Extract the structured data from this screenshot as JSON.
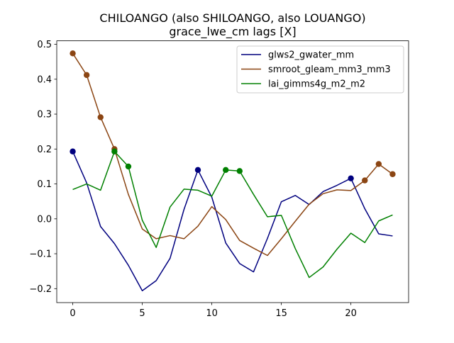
{
  "chart_data": {
    "type": "line",
    "title": "CHILOANGO (also SHILOANGO, also LOUANGO)",
    "subtitle": "grace_lwe_cm lags [X]",
    "xlabel": "",
    "ylabel": "",
    "xlim": [
      -1.15,
      24.15
    ],
    "ylim": [
      -0.24,
      0.51
    ],
    "xticks": [
      0,
      5,
      10,
      15,
      20
    ],
    "yticks": [
      -0.2,
      -0.1,
      0.0,
      0.1,
      0.2,
      0.3,
      0.4,
      0.5
    ],
    "ytick_labels": [
      "−0.2",
      "−0.1",
      "0.0",
      "0.1",
      "0.2",
      "0.3",
      "0.4",
      "0.5"
    ],
    "grid": false,
    "legend_position": "top-right",
    "x": [
      0,
      1,
      2,
      3,
      4,
      5,
      6,
      7,
      8,
      9,
      10,
      11,
      12,
      13,
      14,
      15,
      16,
      17,
      18,
      19,
      20,
      21,
      22,
      23
    ],
    "series": [
      {
        "name": "glws2_gwater_mm",
        "color": "#00007f",
        "values": [
          0.193,
          0.103,
          -0.022,
          -0.071,
          -0.133,
          -0.206,
          -0.177,
          -0.113,
          0.027,
          0.14,
          0.062,
          -0.069,
          -0.128,
          -0.152,
          -0.056,
          0.049,
          0.067,
          0.041,
          0.078,
          0.096,
          0.116,
          0.029,
          -0.043,
          -0.049
        ],
        "markers": [
          0,
          9,
          20
        ]
      },
      {
        "name": "smroot_gleam_mm3_mm3",
        "color": "#8b4513",
        "values": [
          0.474,
          0.412,
          0.291,
          0.2,
          0.07,
          -0.029,
          -0.057,
          -0.048,
          -0.057,
          -0.021,
          0.035,
          -0.002,
          -0.062,
          -0.084,
          -0.105,
          -0.057,
          -0.007,
          0.042,
          0.072,
          0.083,
          0.081,
          0.11,
          0.157,
          0.128
        ],
        "markers": [
          0,
          1,
          2,
          3,
          21,
          22,
          23
        ]
      },
      {
        "name": "lai_gimms4g_m2_m2",
        "color": "#008000",
        "values": [
          0.084,
          0.1,
          0.082,
          0.193,
          0.15,
          -0.004,
          -0.082,
          0.034,
          0.085,
          0.082,
          0.065,
          0.14,
          0.137,
          0.07,
          0.006,
          0.01,
          -0.085,
          -0.168,
          -0.138,
          -0.087,
          -0.041,
          -0.068,
          -0.006,
          0.011
        ],
        "markers": [
          3,
          4,
          11,
          12
        ]
      }
    ]
  }
}
